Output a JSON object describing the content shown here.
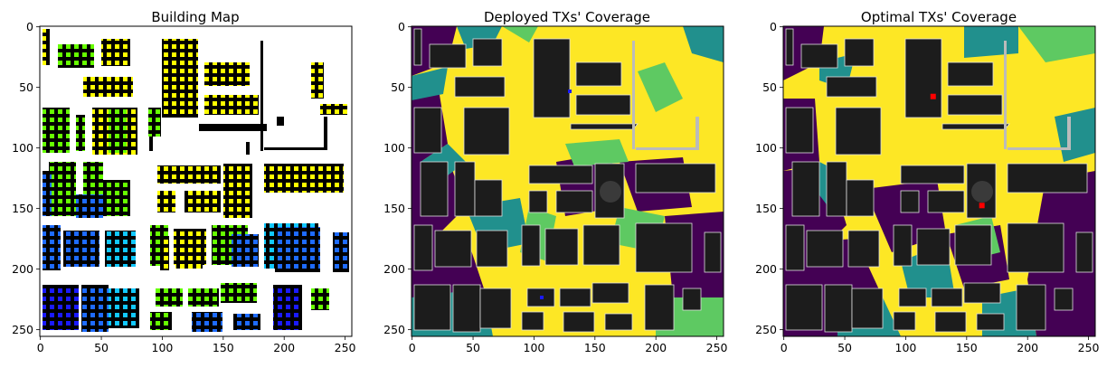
{
  "figure": {
    "panels": [
      {
        "title": "Building Map"
      },
      {
        "title": "Deployed TXs' Coverage"
      },
      {
        "title": "Optimal TXs' Coverage"
      }
    ]
  },
  "chart_data": [
    {
      "type": "heatmap",
      "title": "Building Map",
      "xlabel": "",
      "ylabel": "",
      "xlim": [
        0,
        255
      ],
      "ylim": [
        255,
        0
      ],
      "xticks": [
        0,
        50,
        100,
        150,
        200,
        250
      ],
      "yticks": [
        0,
        50,
        100,
        150,
        200,
        250
      ],
      "background_color": "#ffffff",
      "building_color": "#000000",
      "marker_colors": [
        "#ffff00",
        "#66ff00",
        "#1e6bff",
        "#11c8ff",
        "#1a1aff"
      ]
    },
    {
      "type": "heatmap",
      "title": "Deployed TXs' Coverage",
      "xlabel": "",
      "ylabel": "",
      "xlim": [
        0,
        255
      ],
      "ylim": [
        255,
        0
      ],
      "xticks": [
        0,
        50,
        100,
        150,
        200,
        250
      ],
      "yticks": [
        0,
        50,
        100,
        150,
        200,
        250
      ],
      "colormap": [
        "#440154",
        "#21908d",
        "#5ec962",
        "#fde725"
      ],
      "building_color": "#1c1c1c",
      "tx_marker_color": "#1a1aff"
    },
    {
      "type": "heatmap",
      "title": "Optimal TXs' Coverage",
      "xlabel": "",
      "ylabel": "",
      "xlim": [
        0,
        255
      ],
      "ylim": [
        255,
        0
      ],
      "xticks": [
        0,
        50,
        100,
        150,
        200,
        250
      ],
      "yticks": [
        0,
        50,
        100,
        150,
        200,
        250
      ],
      "colormap": [
        "#440154",
        "#21908d",
        "#5ec962",
        "#fde725"
      ],
      "building_color": "#1c1c1c",
      "tx_marker_color": "#ff0000",
      "tx_points": [
        [
          123,
          58
        ],
        [
          163,
          148
        ]
      ]
    }
  ]
}
